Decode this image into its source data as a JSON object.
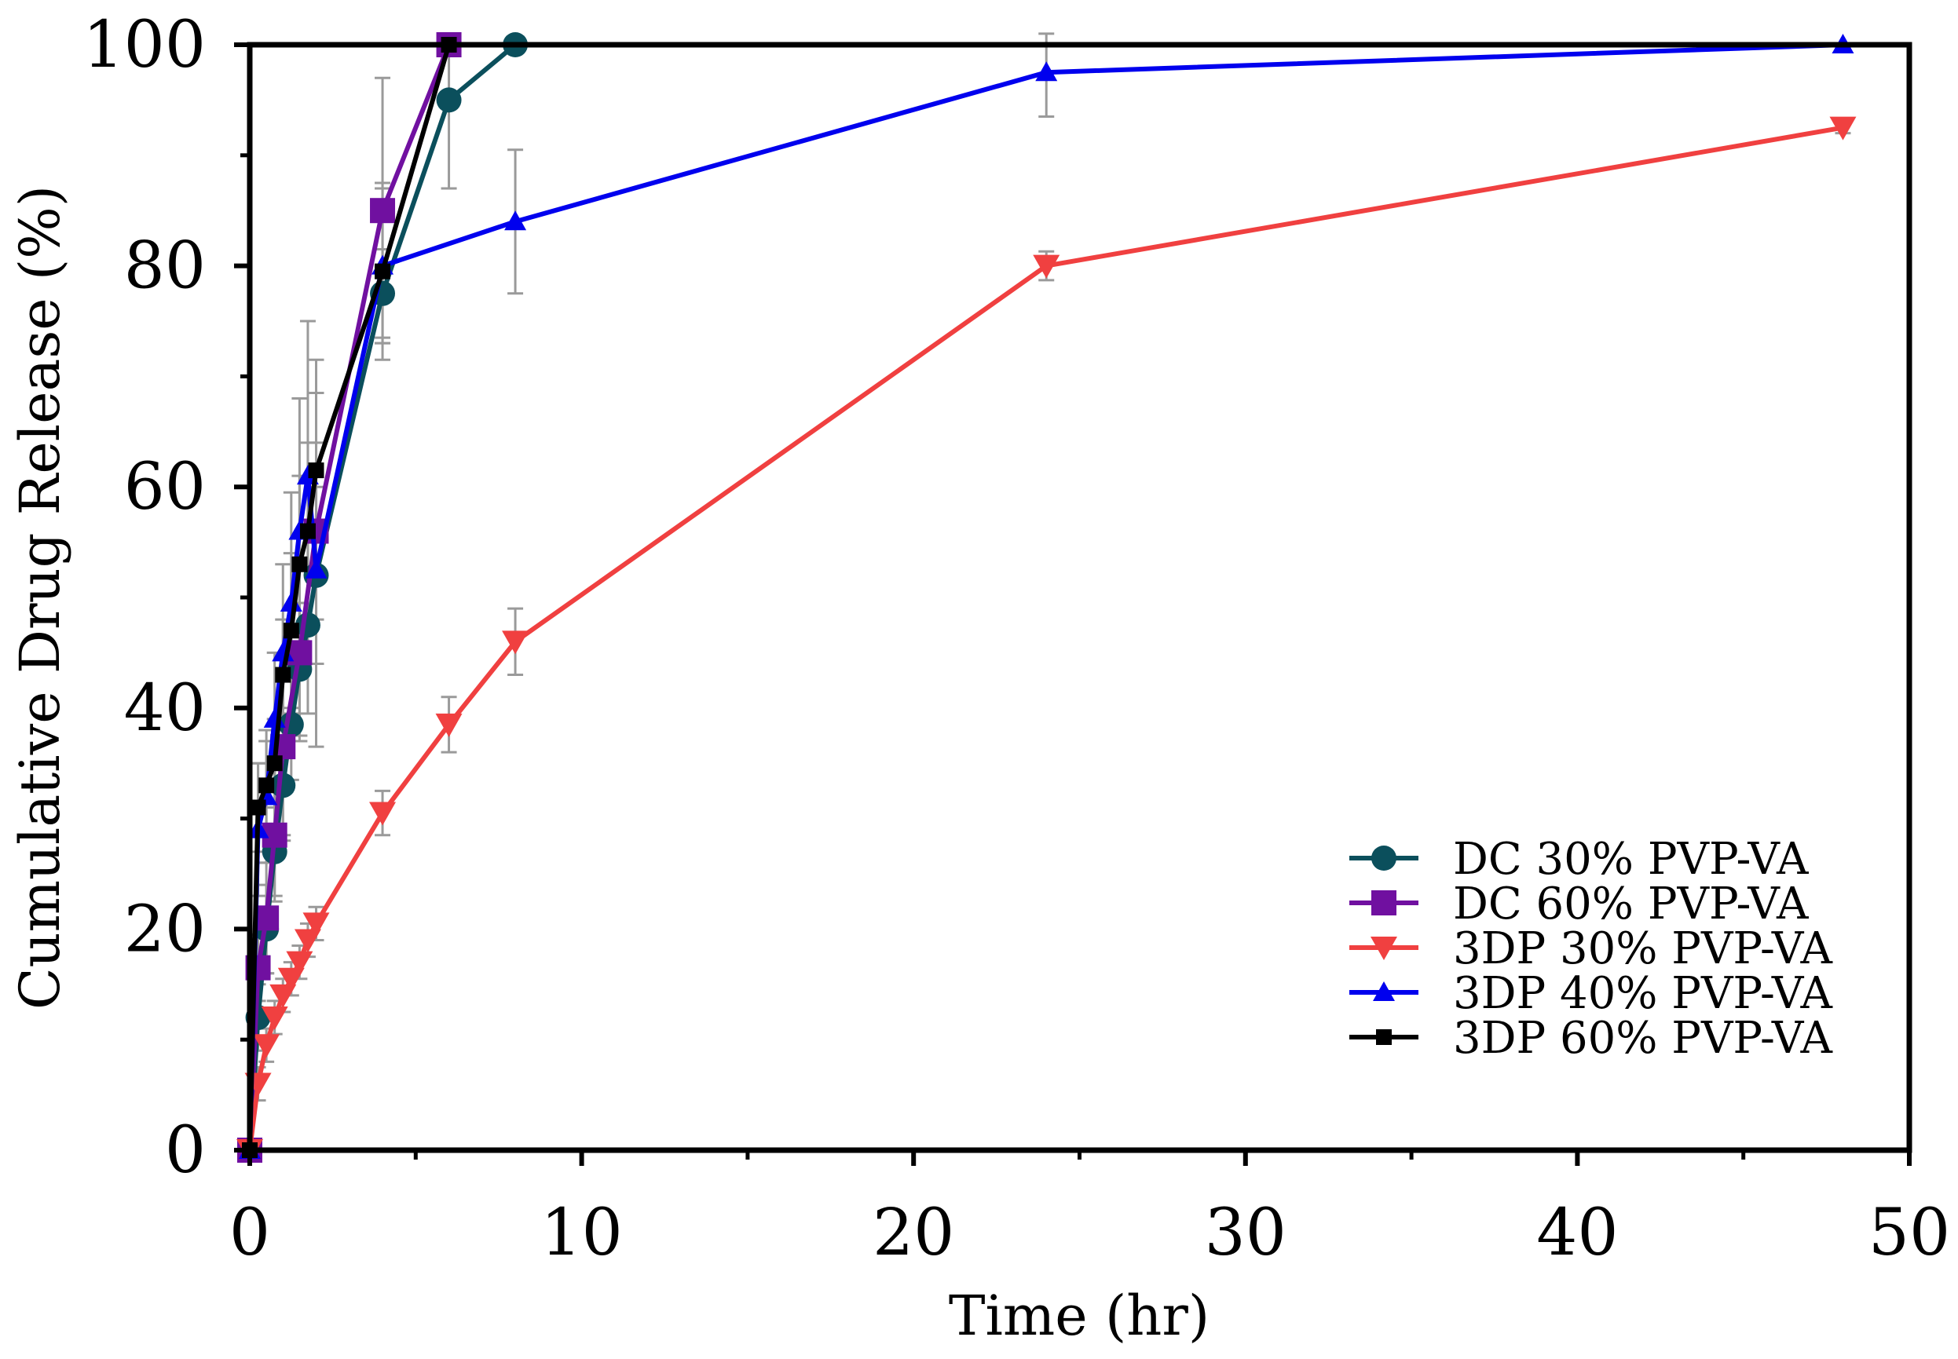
{
  "chart_data": {
    "type": "line",
    "title": "",
    "xlabel": "Time (hr)",
    "ylabel": "Cumulative Drug Release (%)",
    "xlim": [
      0,
      50
    ],
    "ylim": [
      0,
      100
    ],
    "xticks": [
      0,
      10,
      20,
      30,
      40,
      50
    ],
    "yticks": [
      0,
      20,
      40,
      60,
      80,
      100
    ],
    "grid": false,
    "legend_position": "bottom-right",
    "series": [
      {
        "name": "DC 30% PVP-VA",
        "color": "#0b4f5c",
        "marker": "circle",
        "x": [
          0,
          0.25,
          0.5,
          0.75,
          1,
          1.25,
          1.5,
          1.75,
          2,
          4,
          6,
          8
        ],
        "y": [
          0,
          12,
          20,
          27,
          33,
          38.5,
          43.5,
          47.5,
          52,
          77.5,
          95,
          100
        ],
        "err": [
          0,
          3,
          4,
          4,
          5,
          5,
          6,
          8,
          8,
          4,
          8,
          0
        ]
      },
      {
        "name": "DC 60% PVP-VA",
        "color": "#7010a0",
        "marker": "square",
        "x": [
          0,
          0.25,
          0.5,
          0.75,
          1,
          1.5,
          2,
          4,
          6
        ],
        "y": [
          0,
          16.5,
          21,
          28.5,
          36.5,
          45,
          56,
          85,
          100
        ],
        "err": [
          0,
          3,
          5,
          6,
          8,
          8,
          8,
          12,
          0
        ]
      },
      {
        "name": "3DP 30% PVP-VA",
        "color": "#f04040",
        "marker": "triangle-down",
        "x": [
          0,
          0.25,
          0.5,
          0.75,
          1,
          1.25,
          1.5,
          1.75,
          2,
          4,
          6,
          8,
          24,
          48
        ],
        "y": [
          0,
          6,
          9.5,
          12,
          14,
          15.5,
          17,
          19,
          20.5,
          30.5,
          38.5,
          46,
          80,
          92.5
        ],
        "err": [
          0,
          1.5,
          1.5,
          1.5,
          1.5,
          1.5,
          1.5,
          1.5,
          1.5,
          2,
          2.5,
          3,
          1.3,
          0.5
        ]
      },
      {
        "name": "3DP 40% PVP-VA",
        "color": "#0000ee",
        "marker": "triangle-up",
        "x": [
          0,
          0.25,
          0.5,
          0.75,
          1,
          1.25,
          1.5,
          1.75,
          2,
          4,
          8,
          24,
          48
        ],
        "y": [
          0,
          29,
          32,
          39,
          45,
          49.5,
          56,
          61,
          52.5,
          80,
          84,
          97.5,
          100
        ],
        "err": [
          0,
          6,
          6,
          6,
          8,
          10,
          12,
          14,
          16,
          7,
          6.5,
          4,
          0
        ]
      },
      {
        "name": "3DP 60% PVP-VA",
        "color": "#000000",
        "marker": "small-square",
        "x": [
          0,
          0.25,
          0.5,
          0.75,
          1,
          1.25,
          1.5,
          1.75,
          2,
          4,
          6
        ],
        "y": [
          0,
          31,
          33,
          35,
          43,
          47,
          53,
          56,
          61.5,
          79.5,
          100
        ],
        "err": [
          0,
          4,
          4,
          4,
          5,
          7,
          8,
          8,
          10,
          8,
          0
        ]
      }
    ]
  }
}
